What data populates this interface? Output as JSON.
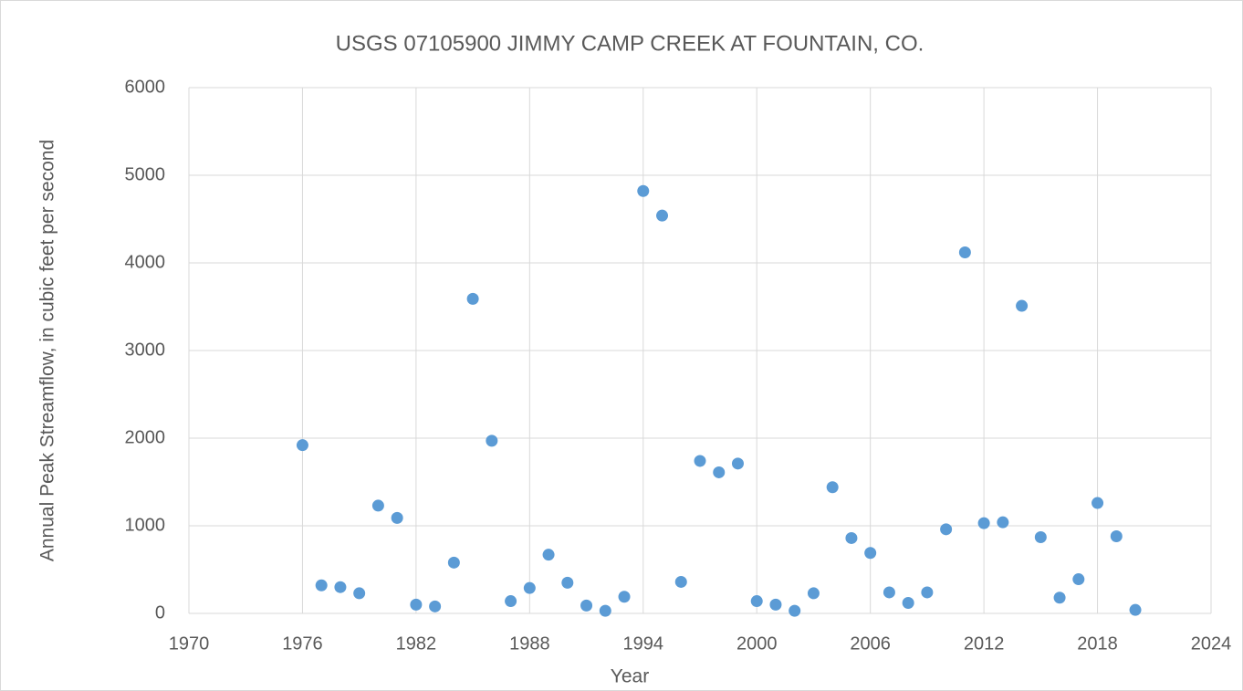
{
  "chart_data": {
    "type": "scatter",
    "title": "USGS 07105900 JIMMY CAMP CREEK AT FOUNTAIN, CO.",
    "x_label": "Year",
    "y_label": "Annual Peak Streamflow, in cubic feet per second",
    "color": "#5b9bd5",
    "grid": true,
    "x": [
      1976,
      1977,
      1978,
      1979,
      1980,
      1981,
      1982,
      1983,
      1984,
      1985,
      1986,
      1987,
      1988,
      1989,
      1990,
      1991,
      1992,
      1993,
      1994,
      1995,
      1996,
      1997,
      1998,
      1999,
      2000,
      2001,
      2002,
      2003,
      2004,
      2005,
      2006,
      2007,
      2008,
      2009,
      2010,
      2011,
      2012,
      2013,
      2014,
      2015,
      2016,
      2017,
      2018,
      2019,
      2020
    ],
    "values": [
      1920,
      320,
      300,
      230,
      1230,
      1090,
      100,
      80,
      580,
      3590,
      1970,
      140,
      290,
      670,
      350,
      90,
      30,
      190,
      4820,
      4540,
      360,
      1740,
      1610,
      1710,
      140,
      100,
      30,
      230,
      1440,
      860,
      690,
      240,
      120,
      240,
      960,
      4120,
      1030,
      1040,
      3510,
      870,
      180,
      390,
      1260,
      880,
      40
    ],
    "xlim": [
      1970,
      2024
    ],
    "xticks": [
      1970,
      1976,
      1982,
      1988,
      1994,
      2000,
      2006,
      2012,
      2018,
      2024
    ],
    "ylim": [
      0,
      6000
    ],
    "yticks": [
      0,
      1000,
      2000,
      3000,
      4000,
      5000,
      6000
    ]
  }
}
